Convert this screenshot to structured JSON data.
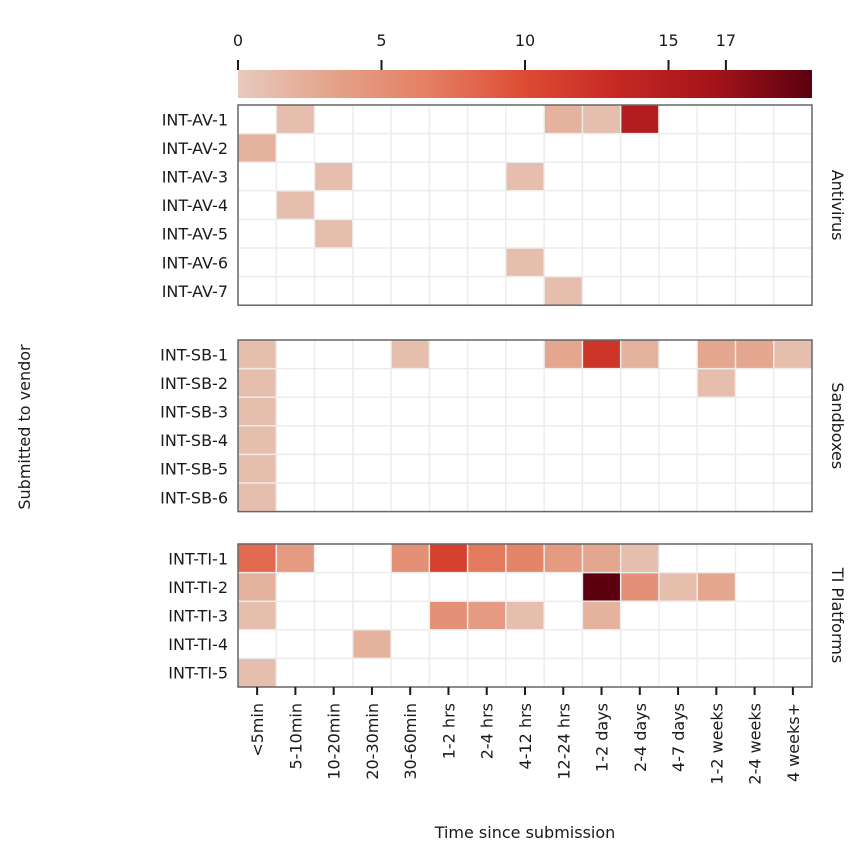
{
  "chart_data": {
    "type": "heatmap",
    "title": "",
    "xlabel": "Time since submission",
    "ylabel": "Submitted to vendor",
    "x_categories": [
      "<5min",
      "5-10min",
      "10-20min",
      "20-30min",
      "30-60min",
      "1-2 hrs",
      "2-4 hrs",
      "4-12 hrs",
      "12-24 hrs",
      "1-2 days",
      "2-4 days",
      "4-7 days",
      "1-2 weeks",
      "2-4 weeks",
      "4 weeks+"
    ],
    "colorbar": {
      "ticks": [
        0,
        5,
        10,
        15,
        17
      ],
      "range": [
        0,
        20
      ],
      "position": "top",
      "colors": [
        "#e7cabd",
        "#e4a28a",
        "#e47e62",
        "#de4b34",
        "#c42722",
        "#a3131a",
        "#5c0010"
      ]
    },
    "grid": true,
    "empty_color": "#ffffff",
    "panels": [
      {
        "name": "Antivirus",
        "rows": [
          "INT-AV-1",
          "INT-AV-2",
          "INT-AV-3",
          "INT-AV-4",
          "INT-AV-5",
          "INT-AV-6",
          "INT-AV-7"
        ],
        "values": [
          [
            0,
            1,
            0,
            0,
            0,
            0,
            0,
            0,
            2,
            1,
            15,
            0,
            0,
            0,
            0
          ],
          [
            2,
            0,
            0,
            0,
            0,
            0,
            0,
            0,
            0,
            0,
            0,
            0,
            0,
            0,
            0
          ],
          [
            0,
            0,
            1,
            0,
            0,
            0,
            0,
            1,
            0,
            0,
            0,
            0,
            0,
            0,
            0
          ],
          [
            0,
            1,
            0,
            0,
            0,
            0,
            0,
            0,
            0,
            0,
            0,
            0,
            0,
            0,
            0
          ],
          [
            0,
            0,
            1,
            0,
            0,
            0,
            0,
            0,
            0,
            0,
            0,
            0,
            0,
            0,
            0
          ],
          [
            0,
            0,
            0,
            0,
            0,
            0,
            0,
            1,
            0,
            0,
            0,
            0,
            0,
            0,
            0
          ],
          [
            0,
            0,
            0,
            0,
            0,
            0,
            0,
            0,
            1,
            0,
            0,
            0,
            0,
            0,
            0
          ]
        ]
      },
      {
        "name": "Sandboxes",
        "rows": [
          "INT-SB-1",
          "INT-SB-2",
          "INT-SB-3",
          "INT-SB-4",
          "INT-SB-5",
          "INT-SB-6"
        ],
        "values": [
          [
            1,
            0,
            0,
            0,
            1,
            0,
            0,
            0,
            3,
            12,
            2,
            0,
            3,
            3,
            1
          ],
          [
            1,
            0,
            0,
            0,
            0,
            0,
            0,
            0,
            0,
            0,
            0,
            0,
            1,
            0,
            0
          ],
          [
            1,
            0,
            0,
            0,
            0,
            0,
            0,
            0,
            0,
            0,
            0,
            0,
            0,
            0,
            0
          ],
          [
            1,
            0,
            0,
            0,
            0,
            0,
            0,
            0,
            0,
            0,
            0,
            0,
            0,
            0,
            0
          ],
          [
            1,
            0,
            0,
            0,
            0,
            0,
            0,
            0,
            0,
            0,
            0,
            0,
            0,
            0,
            0
          ],
          [
            1,
            0,
            0,
            0,
            0,
            0,
            0,
            0,
            0,
            0,
            0,
            0,
            0,
            0,
            0
          ]
        ]
      },
      {
        "name": "TI Platforms",
        "rows": [
          "INT-TI-1",
          "INT-TI-2",
          "INT-TI-3",
          "INT-TI-4",
          "INT-TI-5"
        ],
        "values": [
          [
            8,
            4,
            0,
            0,
            5,
            11,
            7,
            6,
            4,
            3,
            1,
            0,
            0,
            0,
            0
          ],
          [
            2,
            0,
            0,
            0,
            0,
            0,
            0,
            0,
            0,
            20,
            5,
            1,
            3,
            0,
            0
          ],
          [
            1,
            0,
            0,
            0,
            0,
            5,
            4,
            1,
            0,
            2,
            0,
            0,
            0,
            0,
            0
          ],
          [
            0,
            0,
            0,
            2,
            0,
            0,
            0,
            0,
            0,
            0,
            0,
            0,
            0,
            0,
            0
          ],
          [
            1,
            0,
            0,
            0,
            0,
            0,
            0,
            0,
            0,
            0,
            0,
            0,
            0,
            0,
            0
          ]
        ]
      }
    ]
  }
}
